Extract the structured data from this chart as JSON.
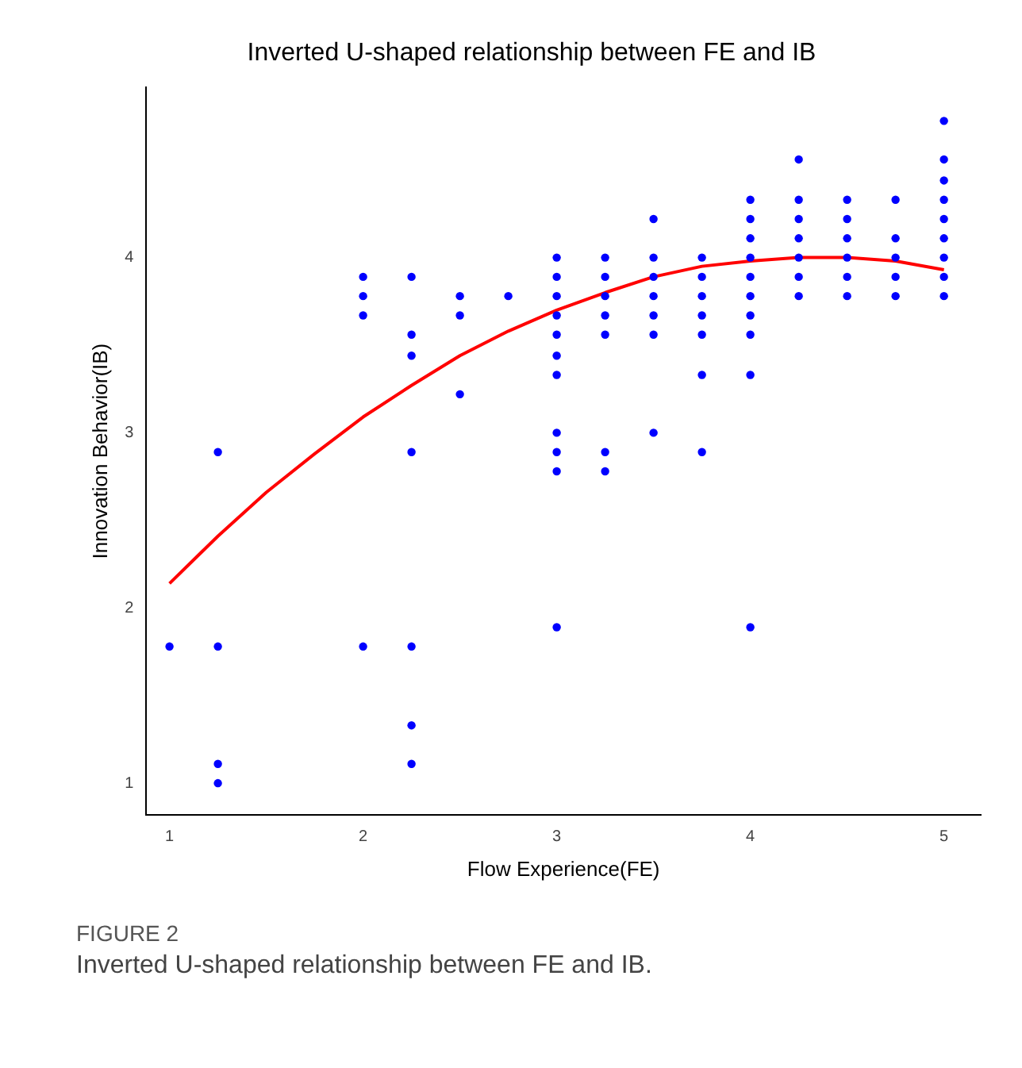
{
  "chart_data": {
    "type": "scatter",
    "title": "Inverted U-shaped relationship between FE and IB",
    "xlabel": "Flow Experience(FE)",
    "ylabel": "Innovation Behavior(IB)",
    "xlim": [
      0.88,
      5.19
    ],
    "ylim": [
      0.82,
      4.97
    ],
    "xticks": [
      1,
      2,
      3,
      4,
      5
    ],
    "yticks": [
      1,
      2,
      3,
      4
    ],
    "grid": false,
    "legend": false,
    "annotations": [
      "FIGURE 2",
      "Inverted U-shaped relationship between FE and IB."
    ],
    "series": [
      {
        "color": "#0000ff",
        "marker": "circle",
        "x": [
          1,
          1.25,
          1.25,
          1.25,
          1.25,
          2,
          2,
          2,
          2,
          2.25,
          2.25,
          2.25,
          2.25,
          2.25,
          2.25,
          2.25,
          2.5,
          2.5,
          2.5,
          2.75,
          3,
          3,
          3,
          3,
          3,
          3,
          3,
          3,
          3,
          3,
          3,
          3.25,
          3.25,
          3.25,
          3.25,
          3.25,
          3.25,
          3.25,
          3.5,
          3.5,
          3.5,
          3.5,
          3.5,
          3.5,
          3.5,
          3.75,
          3.75,
          3.75,
          3.75,
          3.75,
          3.75,
          3.75,
          4,
          4,
          4,
          4,
          4,
          4,
          4,
          4,
          4,
          4,
          4.25,
          4.25,
          4.25,
          4.25,
          4.25,
          4.25,
          4.25,
          4.5,
          4.5,
          4.5,
          4.5,
          4.5,
          4.5,
          4.75,
          4.75,
          4.75,
          4.75,
          4.75,
          5,
          5,
          5,
          5,
          5,
          5,
          5,
          5,
          5
        ],
        "values": [
          1.78,
          2.89,
          1.78,
          1.11,
          1,
          3.89,
          3.78,
          3.67,
          1.78,
          3.89,
          3.56,
          3.44,
          2.89,
          1.78,
          1.33,
          1.11,
          3.78,
          3.67,
          3.22,
          3.78,
          4,
          3.89,
          3.78,
          3.67,
          3.56,
          3.44,
          3.33,
          3,
          2.89,
          2.78,
          1.89,
          4,
          3.89,
          3.78,
          3.67,
          3.56,
          2.89,
          2.78,
          4.22,
          4,
          3.89,
          3.78,
          3.67,
          3.56,
          3,
          4,
          3.89,
          3.78,
          3.67,
          3.56,
          3.33,
          2.89,
          4.33,
          4.22,
          4.11,
          4,
          3.89,
          3.78,
          3.67,
          3.56,
          3.33,
          1.89,
          4.56,
          4.33,
          4.22,
          4.11,
          4,
          3.89,
          3.78,
          4.33,
          4.22,
          4.11,
          4,
          3.89,
          3.78,
          4.33,
          4.11,
          4,
          3.89,
          3.78,
          4.78,
          4.56,
          4.44,
          4.33,
          4.22,
          4.11,
          4,
          3.89,
          3.78
        ]
      },
      {
        "type": "line",
        "color": "#ff0000",
        "marker": "none",
        "line_style": "solid",
        "x": [
          1,
          1.25,
          1.5,
          1.75,
          2,
          2.25,
          2.5,
          2.75,
          3,
          3.25,
          3.5,
          3.75,
          4,
          4.25,
          4.5,
          4.75,
          5
        ],
        "values": [
          2.14,
          2.41,
          2.66,
          2.88,
          3.09,
          3.27,
          3.44,
          3.58,
          3.7,
          3.8,
          3.89,
          3.95,
          3.98,
          4,
          4,
          3.98,
          3.93
        ]
      }
    ]
  }
}
